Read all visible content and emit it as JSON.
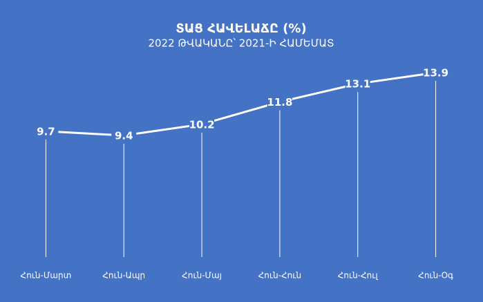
{
  "chart_data": {
    "type": "line",
    "title": "ՏԱՑ ՀԱՎԵԼԱՃԸ (%)",
    "subtitle": "2022 ԹՎԱԿԱՆԸ՝ 2021-Ի ՀԱՄԵՄԱՏ",
    "categories": [
      "Հուն-Մարտ",
      "Հուն-Ապր",
      "Հուն-Մայ",
      "Հուն-Հուն",
      "Հուն-Հուլ",
      "Հուն-Օգ"
    ],
    "values": [
      9.7,
      9.4,
      10.2,
      11.8,
      13.1,
      13.9
    ],
    "color": "#ffffff"
  }
}
